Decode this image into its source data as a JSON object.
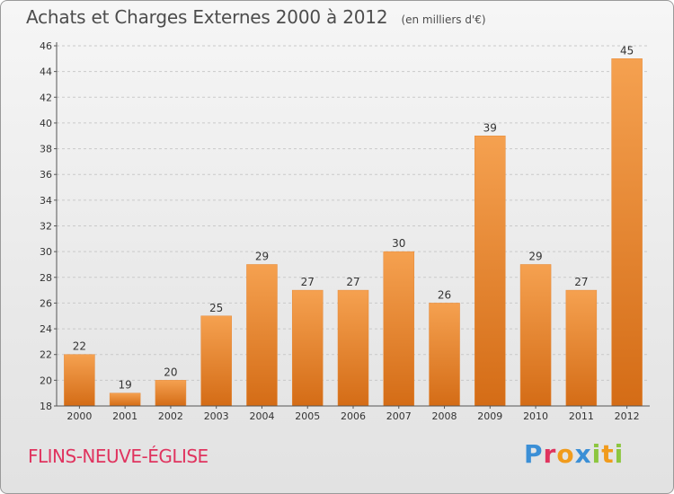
{
  "header": {
    "title": "Achats et Charges Externes 2000 à 2012",
    "subtitle": "(en milliers d'€)"
  },
  "footer": {
    "commune": "FLINS-NEUVE-ÉGLISE",
    "logo": "Proxiti"
  },
  "colors": {
    "bar_top": "#f5a150",
    "bar_bottom": "#d46c16",
    "commune_text": "#e0345f",
    "logo_letters": [
      "#3b8fd6",
      "#e0345f",
      "#f19b1c",
      "#3b8fd6",
      "#8cc63f",
      "#f19b1c",
      "#8cc63f"
    ]
  },
  "chart_data": {
    "type": "bar",
    "categories": [
      "2000",
      "2001",
      "2002",
      "2003",
      "2004",
      "2005",
      "2006",
      "2007",
      "2008",
      "2009",
      "2010",
      "2011",
      "2012"
    ],
    "values": [
      22,
      19,
      20,
      25,
      29,
      27,
      27,
      30,
      26,
      39,
      29,
      27,
      45
    ],
    "ylim": [
      18,
      46
    ],
    "yticks": [
      18,
      20,
      22,
      24,
      26,
      28,
      30,
      32,
      34,
      36,
      38,
      40,
      42,
      44,
      46
    ],
    "grid": true,
    "legend": "none"
  }
}
